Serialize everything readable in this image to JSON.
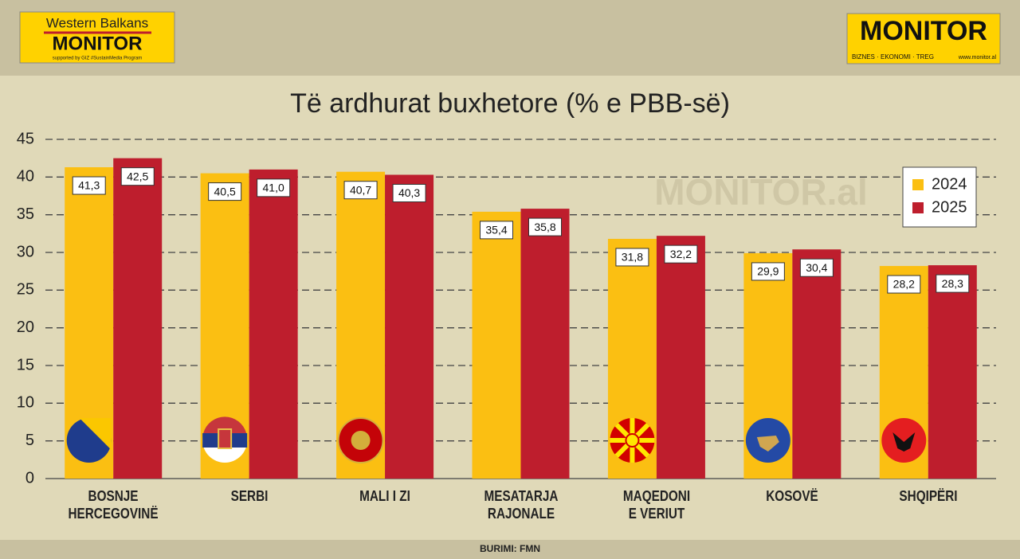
{
  "header": {
    "left_logo": {
      "line1": "Western Balkans",
      "line2": "MONITOR",
      "line3": "supported by GIZ #SustainMedia Program"
    },
    "right_logo": {
      "name": "MONITOR",
      "tagline": "BIZNES · EKONOMI · TREG",
      "url": "www.monitor.al"
    }
  },
  "watermark": "MONITOR.al",
  "chart_data": {
    "type": "bar",
    "title": "Të ardhurat buxhetore (% e PBB-së)",
    "categories": [
      "BOSNJE\nHERCEGOVINË",
      "SERBI",
      "MALI I ZI",
      "MESATARJA\nRAJONALE",
      "MAQEDONI\nE VERIUT",
      "KOSOVË",
      "SHQIPËRI"
    ],
    "series": [
      {
        "name": "2024",
        "color": "#fbbf12",
        "values": [
          41.3,
          40.5,
          40.7,
          35.4,
          31.8,
          29.9,
          28.2
        ],
        "value_labels": [
          "41,3",
          "40,5",
          "40,7",
          "35,4",
          "31,8",
          "29,9",
          "28,2"
        ]
      },
      {
        "name": "2025",
        "color": "#be1e2d",
        "values": [
          42.5,
          41.0,
          40.3,
          35.8,
          32.2,
          30.4,
          28.3
        ],
        "value_labels": [
          "42,5",
          "41,0",
          "40,3",
          "35,8",
          "32,2",
          "30,4",
          "28,3"
        ]
      }
    ],
    "ylim": [
      0,
      45
    ],
    "yticks": [
      0,
      5,
      10,
      15,
      20,
      25,
      30,
      35,
      40,
      45
    ],
    "grid": true,
    "legend": "top-right",
    "source": "BURIMI: FMN"
  }
}
